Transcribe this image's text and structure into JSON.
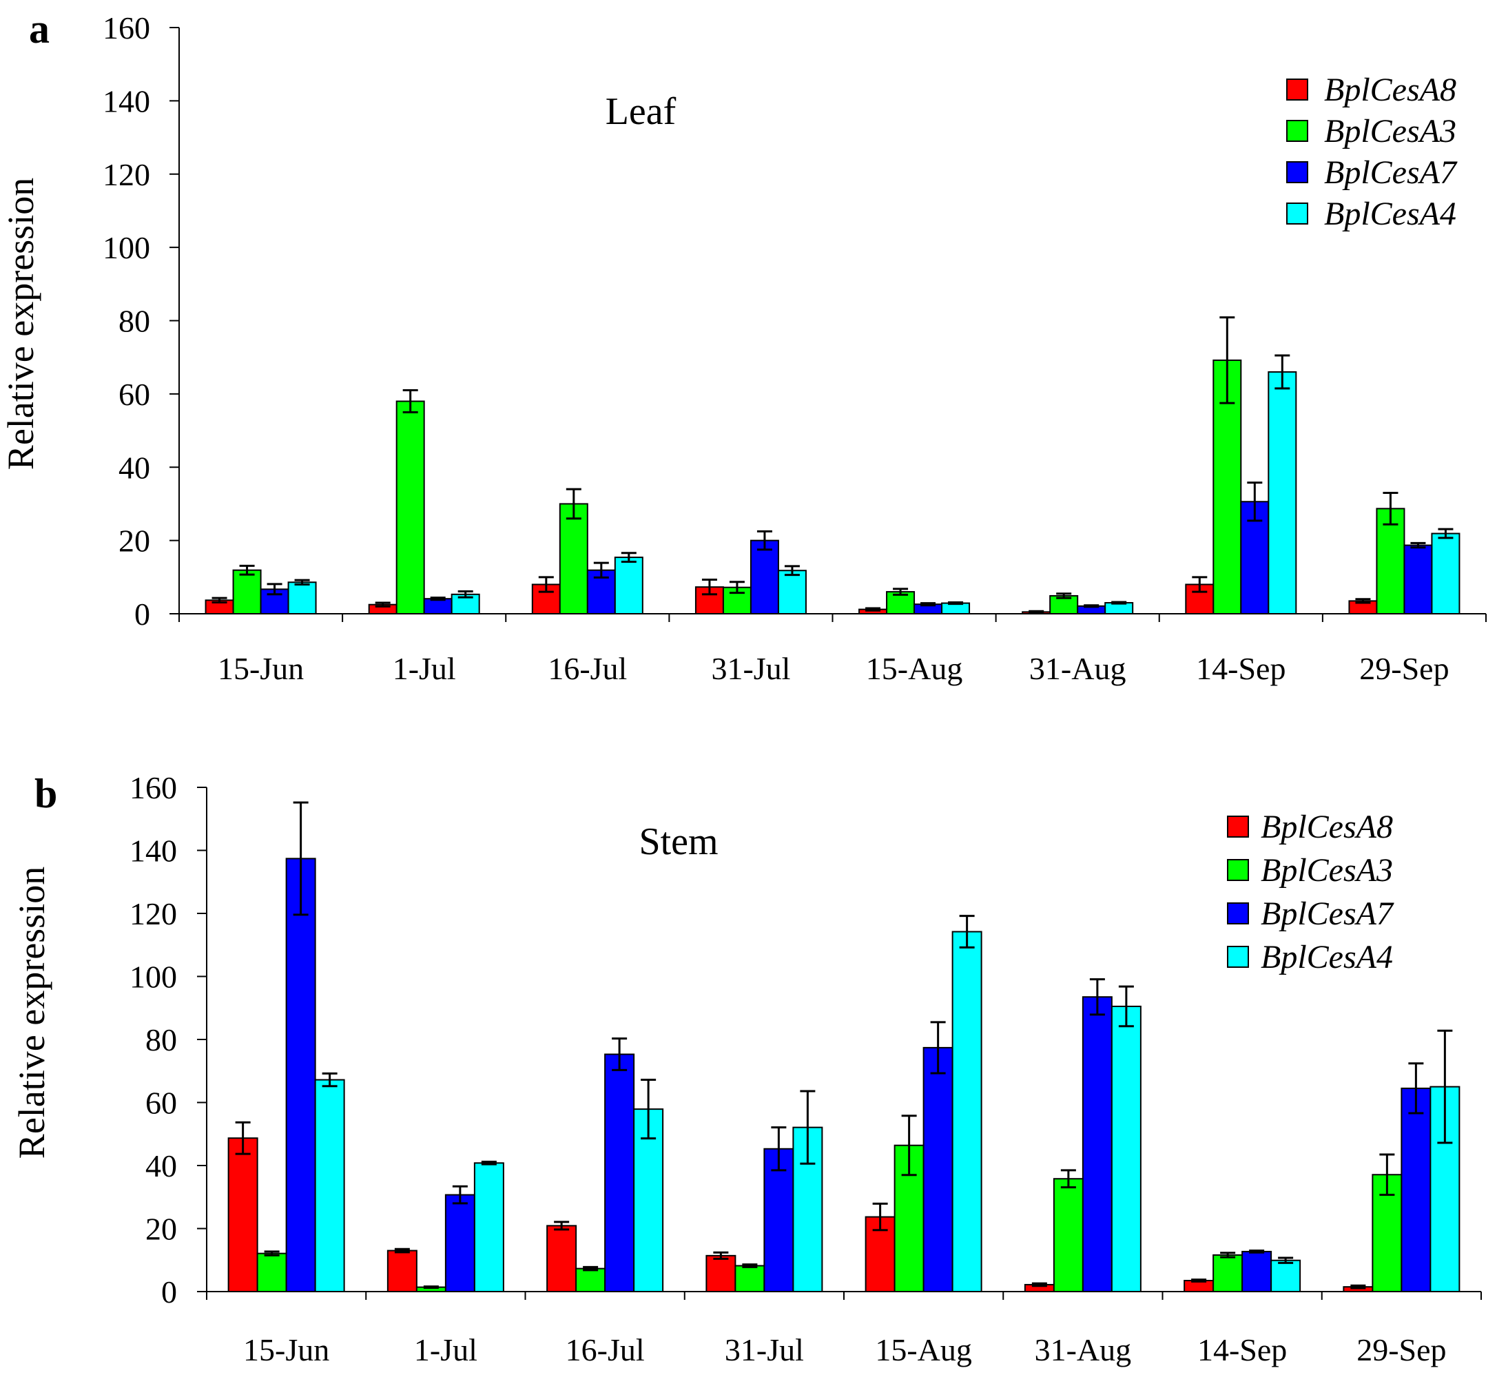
{
  "figure": {
    "panels": [
      "a",
      "b"
    ]
  },
  "colors": {
    "BplCesA8": "#ff0000",
    "BplCesA3": "#00ff00",
    "BplCesA7": "#0000ff",
    "BplCesA4": "#00ffff",
    "axis": "#000000"
  },
  "chart_data": [
    {
      "type": "bar",
      "panel_letter": "a",
      "title": "Leaf",
      "xlabel": "",
      "ylabel": "Relative expression",
      "ylim": [
        0,
        160
      ],
      "yticks": [
        "0",
        "20",
        "40",
        "60",
        "80",
        "100",
        "120",
        "140",
        "160"
      ],
      "categories": [
        "15-Jun",
        "1-Jul",
        "16-Jul",
        "31-Jul",
        "15-Aug",
        "31-Aug",
        "14-Sep",
        "29-Sep"
      ],
      "legend_position": "top-right",
      "grid": false,
      "error_bars": true,
      "series": [
        {
          "name": "BplCesA8",
          "color": "#ff0000",
          "values": [
            3.7,
            2.5,
            8,
            7.3,
            1.2,
            0.5,
            8,
            3.5
          ],
          "errors": [
            0.6,
            0.5,
            2,
            2,
            0.3,
            0.2,
            2,
            0.5
          ]
        },
        {
          "name": "BplCesA3",
          "color": "#00ff00",
          "values": [
            11.9,
            58,
            30,
            7.2,
            6,
            4.9,
            69.2,
            28.7
          ],
          "errors": [
            1.2,
            3,
            4,
            1.5,
            0.8,
            0.6,
            11.7,
            4.3
          ]
        },
        {
          "name": "BplCesA7",
          "color": "#0000ff",
          "values": [
            6.7,
            4.1,
            11.9,
            20,
            2.6,
            2.1,
            30.6,
            18.7
          ],
          "errors": [
            1.4,
            0.3,
            2,
            2.5,
            0.3,
            0.2,
            5.2,
            0.6
          ]
        },
        {
          "name": "BplCesA4",
          "color": "#00ffff",
          "values": [
            8.6,
            5.3,
            15.4,
            11.8,
            2.9,
            3,
            66,
            21.9
          ],
          "errors": [
            0.6,
            0.8,
            1.2,
            1.2,
            0.2,
            0.2,
            4.5,
            1.2
          ]
        }
      ]
    },
    {
      "type": "bar",
      "panel_letter": "b",
      "title": "Stem",
      "xlabel": "",
      "ylabel": "Relative expression",
      "ylim": [
        0,
        160
      ],
      "yticks": [
        "0",
        "20",
        "40",
        "60",
        "80",
        "100",
        "120",
        "140",
        "160"
      ],
      "categories": [
        "15-Jun",
        "1-Jul",
        "16-Jul",
        "31-Jul",
        "15-Aug",
        "31-Aug",
        "14-Sep",
        "29-Sep"
      ],
      "legend_position": "top-right",
      "grid": false,
      "error_bars": true,
      "series": [
        {
          "name": "BplCesA8",
          "color": "#ff0000",
          "values": [
            48.7,
            13,
            20.9,
            11.4,
            23.7,
            2.2,
            3.5,
            1.5
          ],
          "errors": [
            5,
            0.5,
            1.2,
            1,
            4.2,
            0.4,
            0.3,
            0.4
          ]
        },
        {
          "name": "BplCesA3",
          "color": "#00ff00",
          "values": [
            12.1,
            1.4,
            7.3,
            8.2,
            46.4,
            35.8,
            11.6,
            37.1
          ],
          "errors": [
            0.6,
            0.2,
            0.5,
            0.4,
            9.4,
            2.7,
            0.7,
            6.4
          ]
        },
        {
          "name": "BplCesA7",
          "color": "#0000ff",
          "values": [
            137.4,
            30.7,
            75.3,
            45.3,
            77.4,
            93.5,
            12.7,
            64.5
          ],
          "errors": [
            17.8,
            2.7,
            5,
            6.8,
            8.1,
            5.6,
            0.3,
            7.9
          ]
        },
        {
          "name": "BplCesA4",
          "color": "#00ffff",
          "values": [
            67.2,
            40.8,
            57.9,
            52.1,
            114.2,
            90.5,
            9.9,
            65
          ],
          "errors": [
            2,
            0.4,
            9.3,
            11.5,
            5,
            6.3,
            0.8,
            17.8
          ]
        }
      ]
    }
  ]
}
